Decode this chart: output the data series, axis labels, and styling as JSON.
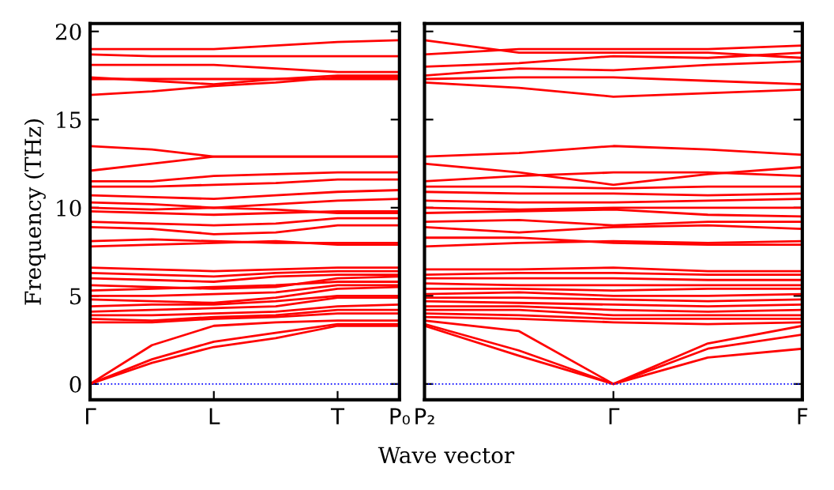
{
  "chart_data": [
    {
      "type": "line",
      "ylabel": "Frequency (THz)",
      "xlabel": "Wave vector",
      "categories": [
        "Γ",
        null,
        "L",
        null,
        "T",
        "P₀"
      ],
      "ylim": [
        -0.9,
        20.45
      ],
      "yticks": [
        0,
        5,
        10,
        15,
        20
      ],
      "grid": false,
      "legend": false,
      "line_style": "solid",
      "marker": "none",
      "ref_lines": [
        {
          "axis": "y",
          "value": 0,
          "color": "#0000ff",
          "line_style": "dotted"
        }
      ],
      "series": [
        {
          "color": "#ff0000",
          "values": [
            0,
            1.2,
            2.1,
            2.6,
            3.3,
            3.3
          ]
        },
        {
          "color": "#ff0000",
          "values": [
            0,
            1.4,
            2.4,
            2.9,
            3.4,
            3.4
          ]
        },
        {
          "color": "#ff0000",
          "values": [
            0,
            2.2,
            3.3,
            3.5,
            3.6,
            3.6
          ]
        },
        {
          "color": "#ff0000",
          "values": [
            3.5,
            3.5,
            3.7,
            3.8,
            4.0,
            4.0
          ]
        },
        {
          "color": "#ff0000",
          "values": [
            3.7,
            3.6,
            3.8,
            3.9,
            4.2,
            4.2
          ]
        },
        {
          "color": "#ff0000",
          "values": [
            3.9,
            3.9,
            4.0,
            4.1,
            4.4,
            4.5
          ]
        },
        {
          "color": "#ff0000",
          "values": [
            4.1,
            4.2,
            4.3,
            4.4,
            4.9,
            4.9
          ]
        },
        {
          "color": "#ff0000",
          "values": [
            4.4,
            4.5,
            4.5,
            4.7,
            5.0,
            5.0
          ]
        },
        {
          "color": "#ff0000",
          "values": [
            4.8,
            4.7,
            4.6,
            4.9,
            5.4,
            5.5
          ]
        },
        {
          "color": "#ff0000",
          "values": [
            5.0,
            5.0,
            5.1,
            5.2,
            5.6,
            5.6
          ]
        },
        {
          "color": "#ff0000",
          "values": [
            5.3,
            5.4,
            5.5,
            5.6,
            5.8,
            5.8
          ]
        },
        {
          "color": "#ff0000",
          "values": [
            5.6,
            5.5,
            5.4,
            5.5,
            6.0,
            6.1
          ]
        },
        {
          "color": "#ff0000",
          "values": [
            6.0,
            5.9,
            5.8,
            6.1,
            6.2,
            6.2
          ]
        },
        {
          "color": "#ff0000",
          "values": [
            6.3,
            6.2,
            6.1,
            6.3,
            6.4,
            6.4
          ]
        },
        {
          "color": "#ff0000",
          "values": [
            6.6,
            6.5,
            6.4,
            6.5,
            6.6,
            6.6
          ]
        },
        {
          "color": "#ff0000",
          "values": [
            7.8,
            7.9,
            8.0,
            8.1,
            7.9,
            7.9
          ]
        },
        {
          "color": "#ff0000",
          "values": [
            8.1,
            8.2,
            8.1,
            8.0,
            8.0,
            8.0
          ]
        },
        {
          "color": "#ff0000",
          "values": [
            8.9,
            8.8,
            8.5,
            8.6,
            9.0,
            9.0
          ]
        },
        {
          "color": "#ff0000",
          "values": [
            9.2,
            9.1,
            9.0,
            9.1,
            9.4,
            9.4
          ]
        },
        {
          "color": "#ff0000",
          "values": [
            9.8,
            9.7,
            9.6,
            9.7,
            9.8,
            9.8
          ]
        },
        {
          "color": "#ff0000",
          "values": [
            10.0,
            9.9,
            10.0,
            9.9,
            9.7,
            9.7
          ]
        },
        {
          "color": "#ff0000",
          "values": [
            10.3,
            10.2,
            10.0,
            10.2,
            10.4,
            10.5
          ]
        },
        {
          "color": "#ff0000",
          "values": [
            10.7,
            10.6,
            10.5,
            10.7,
            10.9,
            11.0
          ]
        },
        {
          "color": "#ff0000",
          "values": [
            11.2,
            11.2,
            11.3,
            11.4,
            11.6,
            11.6
          ]
        },
        {
          "color": "#ff0000",
          "values": [
            11.5,
            11.5,
            11.8,
            11.9,
            12.0,
            12.0
          ]
        },
        {
          "color": "#ff0000",
          "values": [
            12.1,
            12.5,
            12.9,
            12.9,
            12.9,
            12.9
          ]
        },
        {
          "color": "#ff0000",
          "values": [
            13.5,
            13.3,
            12.9,
            12.9,
            12.9,
            12.9
          ]
        },
        {
          "color": "#ff0000",
          "values": [
            16.4,
            16.6,
            16.9,
            17.1,
            17.4,
            17.4
          ]
        },
        {
          "color": "#ff0000",
          "values": [
            17.3,
            17.3,
            17.3,
            17.3,
            17.3,
            17.3
          ]
        },
        {
          "color": "#ff0000",
          "values": [
            17.4,
            17.2,
            17.0,
            17.3,
            17.5,
            17.5
          ]
        },
        {
          "color": "#ff0000",
          "values": [
            18.1,
            18.1,
            18.1,
            17.9,
            17.7,
            17.7
          ]
        },
        {
          "color": "#ff0000",
          "values": [
            18.7,
            18.6,
            18.6,
            18.6,
            18.6,
            18.6
          ]
        },
        {
          "color": "#ff0000",
          "values": [
            19.0,
            19.0,
            19.0,
            19.2,
            19.4,
            19.5
          ]
        }
      ]
    },
    {
      "type": "line",
      "categories": [
        "P₂",
        null,
        "Γ",
        null,
        "F"
      ],
      "ylim": [
        -0.9,
        20.45
      ],
      "yticks": [
        0,
        5,
        10,
        15,
        20
      ],
      "tick_labels": "x",
      "grid": false,
      "legend": false,
      "line_style": "solid",
      "marker": "none",
      "ref_lines": [
        {
          "axis": "y",
          "value": 0,
          "color": "#0000ff",
          "line_style": "dotted"
        }
      ],
      "series": [
        {
          "color": "#ff0000",
          "values": [
            3.3,
            1.6,
            0,
            1.5,
            2.0
          ]
        },
        {
          "color": "#ff0000",
          "values": [
            3.4,
            1.9,
            0,
            2.0,
            2.8
          ]
        },
        {
          "color": "#ff0000",
          "values": [
            3.6,
            3.0,
            0,
            2.3,
            3.3
          ]
        },
        {
          "color": "#ff0000",
          "values": [
            3.8,
            3.7,
            3.5,
            3.4,
            3.5
          ]
        },
        {
          "color": "#ff0000",
          "values": [
            4.0,
            3.9,
            3.7,
            3.7,
            3.7
          ]
        },
        {
          "color": "#ff0000",
          "values": [
            4.2,
            4.2,
            3.9,
            3.9,
            3.9
          ]
        },
        {
          "color": "#ff0000",
          "values": [
            4.4,
            4.4,
            4.2,
            4.1,
            4.2
          ]
        },
        {
          "color": "#ff0000",
          "values": [
            4.7,
            4.6,
            4.5,
            4.4,
            4.5
          ]
        },
        {
          "color": "#ff0000",
          "values": [
            4.9,
            4.9,
            4.8,
            4.7,
            4.8
          ]
        },
        {
          "color": "#ff0000",
          "values": [
            5.1,
            5.2,
            5.0,
            5.0,
            5.1
          ]
        },
        {
          "color": "#ff0000",
          "values": [
            5.4,
            5.4,
            5.3,
            5.4,
            5.4
          ]
        },
        {
          "color": "#ff0000",
          "values": [
            5.7,
            5.6,
            5.6,
            5.6,
            5.6
          ]
        },
        {
          "color": "#ff0000",
          "values": [
            6.0,
            6.0,
            6.0,
            5.9,
            5.9
          ]
        },
        {
          "color": "#ff0000",
          "values": [
            6.2,
            6.3,
            6.3,
            6.2,
            6.2
          ]
        },
        {
          "color": "#ff0000",
          "values": [
            6.5,
            6.5,
            6.6,
            6.4,
            6.4
          ]
        },
        {
          "color": "#ff0000",
          "values": [
            7.8,
            8.0,
            8.1,
            8.0,
            8.1
          ]
        },
        {
          "color": "#ff0000",
          "values": [
            8.3,
            8.3,
            8.0,
            7.9,
            7.9
          ]
        },
        {
          "color": "#ff0000",
          "values": [
            8.9,
            8.6,
            8.9,
            9.0,
            8.8
          ]
        },
        {
          "color": "#ff0000",
          "values": [
            9.2,
            9.3,
            9.0,
            9.2,
            9.2
          ]
        },
        {
          "color": "#ff0000",
          "values": [
            9.7,
            9.8,
            9.9,
            9.6,
            9.5
          ]
        },
        {
          "color": "#ff0000",
          "values": [
            10.0,
            9.9,
            10.0,
            10.0,
            10.0
          ]
        },
        {
          "color": "#ff0000",
          "values": [
            10.4,
            10.3,
            10.3,
            10.4,
            10.5
          ]
        },
        {
          "color": "#ff0000",
          "values": [
            10.9,
            10.8,
            10.8,
            10.7,
            10.8
          ]
        },
        {
          "color": "#ff0000",
          "values": [
            11.2,
            11.2,
            11.1,
            11.2,
            11.2
          ]
        },
        {
          "color": "#ff0000",
          "values": [
            11.5,
            11.8,
            12.0,
            12.0,
            11.8
          ]
        },
        {
          "color": "#ff0000",
          "values": [
            12.5,
            12.0,
            11.3,
            11.9,
            12.3
          ]
        },
        {
          "color": "#ff0000",
          "values": [
            12.9,
            13.1,
            13.5,
            13.3,
            13.0
          ]
        },
        {
          "color": "#ff0000",
          "values": [
            17.1,
            16.8,
            16.3,
            16.5,
            16.7
          ]
        },
        {
          "color": "#ff0000",
          "values": [
            17.3,
            17.4,
            17.4,
            17.2,
            17.0
          ]
        },
        {
          "color": "#ff0000",
          "values": [
            17.5,
            17.9,
            17.8,
            18.1,
            18.3
          ]
        },
        {
          "color": "#ff0000",
          "values": [
            18.0,
            18.2,
            18.6,
            18.5,
            18.8
          ]
        },
        {
          "color": "#ff0000",
          "values": [
            18.7,
            19.0,
            19.0,
            19.0,
            19.2
          ]
        },
        {
          "color": "#ff0000",
          "values": [
            19.5,
            18.8,
            18.8,
            18.8,
            18.5
          ]
        }
      ]
    }
  ]
}
